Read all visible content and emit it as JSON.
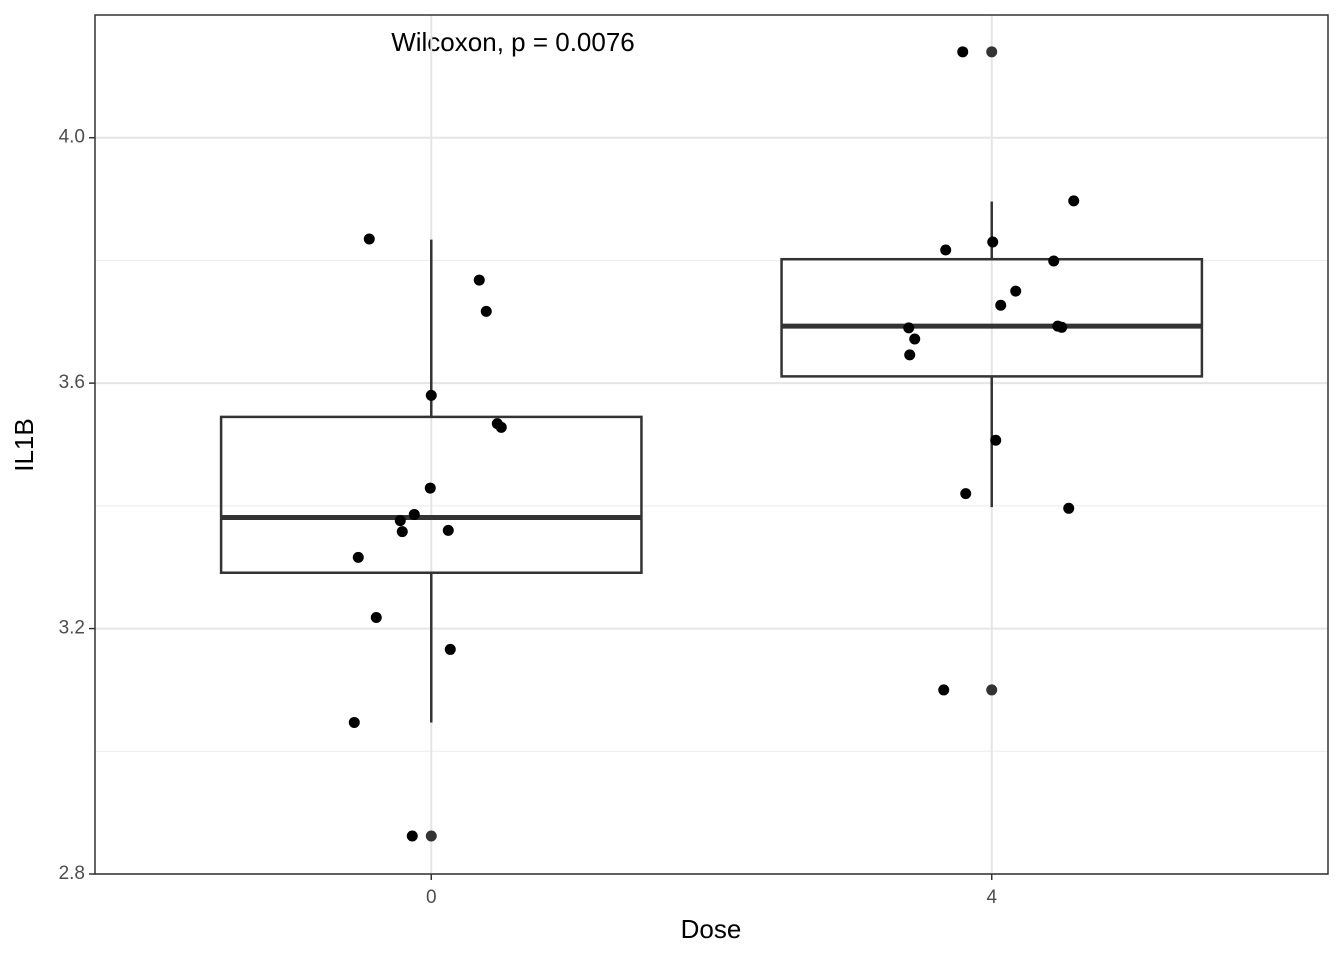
{
  "chart_data": {
    "type": "box",
    "annotation": "Wilcoxon, p = 0.0076",
    "x_label": "Dose",
    "y_label": "IL1B",
    "categories": [
      "0",
      "4"
    ],
    "boxes": [
      {
        "whisker_low": 3.047,
        "q1": 3.291,
        "median": 3.381,
        "q3": 3.545,
        "whisker_high": 3.834,
        "outliers": [
          2.862
        ]
      },
      {
        "whisker_low": 3.398,
        "q1": 3.611,
        "median": 3.693,
        "q3": 3.802,
        "whisker_high": 3.896,
        "outliers": [
          4.14,
          3.1
        ]
      }
    ],
    "points": [
      [
        3.835,
        3.768,
        3.717,
        3.58,
        3.534,
        3.528,
        3.429,
        3.386,
        3.376,
        3.358,
        3.36,
        3.316,
        3.218,
        3.166,
        3.047,
        2.862
      ],
      [
        4.14,
        3.897,
        3.83,
        3.817,
        3.799,
        3.75,
        3.727,
        3.69,
        3.693,
        3.691,
        3.672,
        3.646,
        3.507,
        3.42,
        3.396,
        3.1
      ]
    ],
    "box_color": "#333333",
    "point_color": "#000000",
    "outlier_color": "#333333",
    "ylim": [
      2.8,
      4.2
    ],
    "yticks": [
      2.8,
      3.2,
      3.6,
      {
        "value": 4,
        "label": "4.0"
      }
    ],
    "minor_yticks": [
      3.0,
      3.4,
      3.8
    ],
    "grid": true
  }
}
